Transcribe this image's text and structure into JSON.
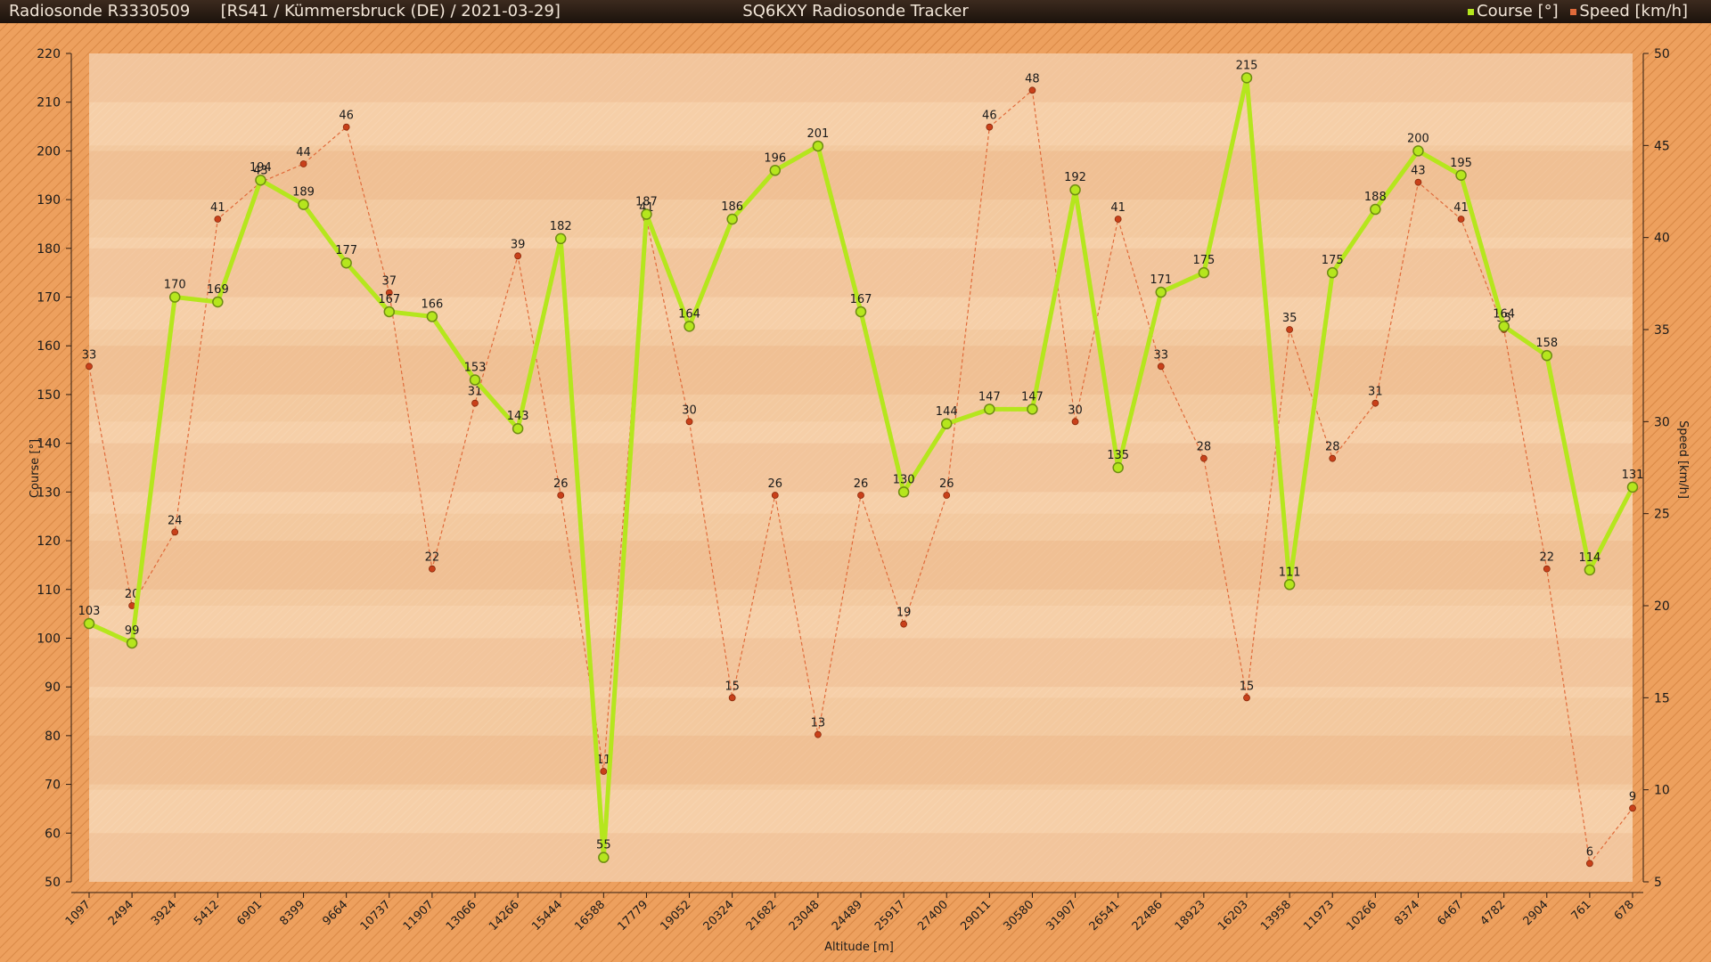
{
  "header": {
    "sonde": "Radiosonde R3330509",
    "info": "[RS41 / Kümmersbruck (DE) / 2021-03-29]",
    "title": "SQ6KXY Radiosonde Tracker",
    "legend_course": "Course [°]",
    "legend_speed": "Speed [km/h]"
  },
  "colors": {
    "background": "#e89a56",
    "plot_area": "#f6cfa8",
    "course_line": "#b5e61d",
    "course_marker_edge": "#6f8c12",
    "speed_line": "#e06a3a",
    "speed_marker": "#c8401a"
  },
  "chart_data": {
    "type": "line",
    "title": "",
    "xlabel": "Altitude [m]",
    "ylabel": "Course [°]",
    "y2label": "Speed [km/h]",
    "ylim": [
      50,
      220
    ],
    "y2lim": [
      5,
      50
    ],
    "yticks": [
      50,
      60,
      70,
      80,
      90,
      100,
      110,
      120,
      130,
      140,
      150,
      160,
      170,
      180,
      190,
      200,
      210,
      220
    ],
    "y2ticks": [
      5,
      10,
      15,
      20,
      25,
      30,
      35,
      40,
      45,
      50
    ],
    "grid": true,
    "legend": "top-right",
    "categories": [
      "1097",
      "2494",
      "3924",
      "5412",
      "6901",
      "8399",
      "9664",
      "10737",
      "11907",
      "13066",
      "14266",
      "15444",
      "16588",
      "17779",
      "19052",
      "20324",
      "21682",
      "23048",
      "24489",
      "25917",
      "27400",
      "29011",
      "30580",
      "31907",
      "26541",
      "22486",
      "18923",
      "16203",
      "13958",
      "11973",
      "10266",
      "8374",
      "6467",
      "4782",
      "2904",
      "761",
      "678"
    ],
    "series": [
      {
        "name": "Course [°]",
        "axis": "left",
        "values": [
          103,
          99,
          170,
          169,
          194,
          189,
          177,
          167,
          166,
          153,
          143,
          182,
          55,
          187,
          164,
          186,
          196,
          201,
          167,
          130,
          144,
          147,
          147,
          192,
          135,
          171,
          175,
          215,
          111,
          175,
          188,
          200,
          195,
          164,
          158,
          114,
          131
        ]
      },
      {
        "name": "Speed [km/h]",
        "axis": "right",
        "values": [
          33,
          20,
          24,
          41,
          43,
          44,
          46,
          37,
          22,
          31,
          39,
          26,
          11,
          41,
          30,
          15,
          26,
          13,
          26,
          19,
          26,
          46,
          48,
          30,
          41,
          33,
          28,
          15,
          35,
          28,
          31,
          43,
          41,
          35,
          22,
          6,
          9
        ]
      }
    ]
  }
}
